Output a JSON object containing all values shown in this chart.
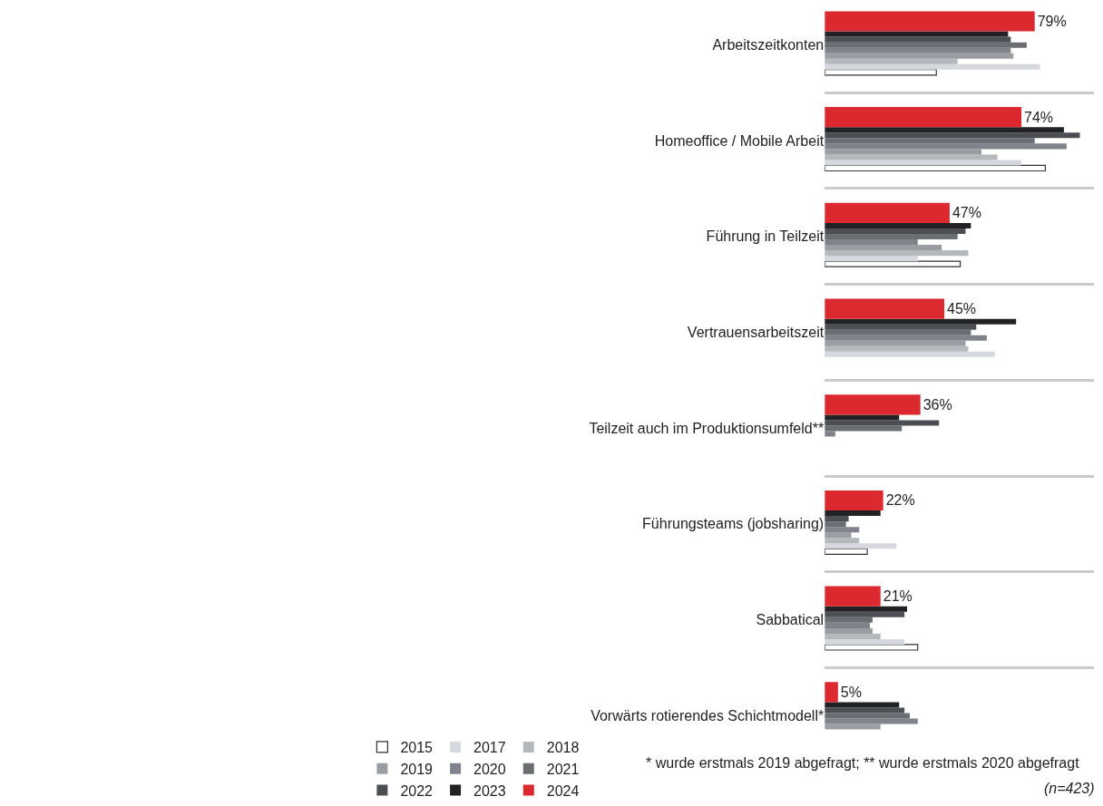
{
  "chart_data": {
    "type": "bar",
    "orientation": "horizontal",
    "legend": "bottom",
    "grid": "y",
    "categories": [
      "Arbeitszeitkonten",
      "Homeoffice / Mobile Arbeit",
      "Führung in Teilzeit",
      "Vertrauensarbeitszeit",
      "Teilzeit auch im Produktionsumfeld**",
      "Führungsteams (jobsharing)",
      "Sabbatical",
      "Vorwärts rotierendes Schichtmodell*"
    ],
    "series": [
      {
        "name": "2015",
        "color": "#ffffff",
        "values": [
          42,
          83,
          51,
          null,
          null,
          16,
          35,
          null
        ]
      },
      {
        "name": "2017",
        "color": "#d5d8dc",
        "values": [
          81,
          74,
          35,
          64,
          null,
          27,
          30,
          null
        ]
      },
      {
        "name": "2018",
        "color": "#b5b8bc",
        "values": [
          50,
          65,
          54,
          54,
          null,
          13,
          21,
          null
        ]
      },
      {
        "name": "2019",
        "color": "#9a9da2",
        "values": [
          71,
          59,
          44,
          53,
          null,
          10,
          18,
          21
        ]
      },
      {
        "name": "2020",
        "color": "#80838a",
        "values": [
          70,
          91,
          35,
          61,
          4,
          13,
          17,
          35
        ]
      },
      {
        "name": "2021",
        "color": "#6a6d72",
        "values": [
          76,
          79,
          50,
          55,
          29,
          8,
          18,
          32
        ]
      },
      {
        "name": "2022",
        "color": "#4b4e53",
        "values": [
          70,
          96,
          53,
          57,
          43,
          9,
          30,
          30
        ]
      },
      {
        "name": "2023",
        "color": "#222124",
        "values": [
          69,
          90,
          55,
          72,
          28,
          21,
          31,
          28
        ]
      },
      {
        "name": "2024",
        "color": "#dc292f",
        "values": [
          79,
          74,
          47,
          45,
          36,
          22,
          21,
          5
        ],
        "value_labels": [
          "79%",
          "74%",
          "47%",
          "45%",
          "36%",
          "22%",
          "21%",
          "5%"
        ]
      }
    ],
    "annotations": [
      "* wurde erstmals 2019 abgefragt; ** wurde erstmals 2020 abgefragt",
      "(n=423)"
    ]
  }
}
